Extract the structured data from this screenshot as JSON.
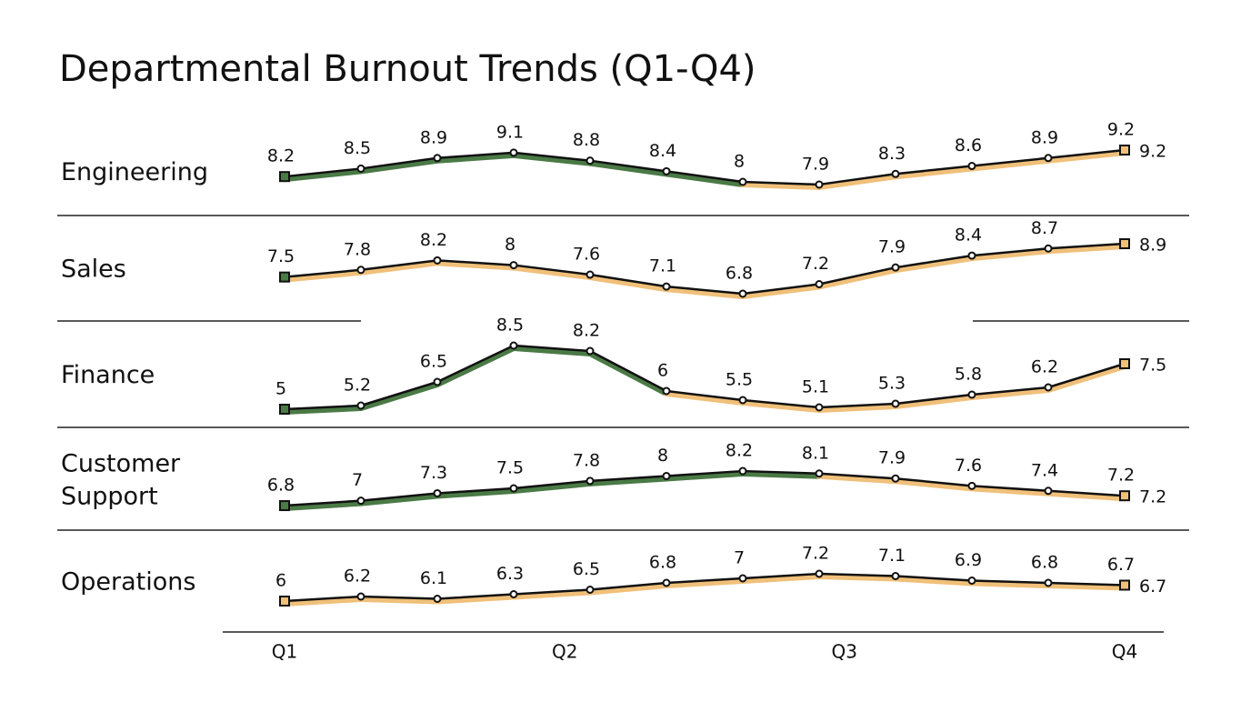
{
  "chart_data": {
    "type": "line",
    "title": "Departmental Burnout Trends (Q1-Q4)",
    "categories": [
      null,
      null,
      null,
      null,
      null,
      null,
      null,
      null,
      null,
      null,
      null,
      null
    ],
    "xticks": [
      {
        "value": 0,
        "label": "Q1"
      },
      {
        "value": 3.67,
        "label": "Q2"
      },
      {
        "value": 7.33,
        "label": "Q3"
      },
      {
        "value": 11,
        "label": "Q4"
      }
    ],
    "line_color": "#111111",
    "series": [
      {
        "name": "Engineering",
        "values": [
          8.2,
          8.5,
          8.9,
          9.1,
          8.8,
          8.4,
          8.0,
          7.9,
          8.3,
          8.6,
          8.9,
          9.2
        ],
        "ylim": [
          7.35,
          9.2
        ],
        "repeat_last_label": true,
        "segment_colors": [
          "#4a7a45",
          "#4a7a45",
          "#4a7a45",
          "#4a7a45",
          "#4a7a45",
          "#4a7a45",
          "#f0c07a",
          "#f0c07a",
          "#f0c07a",
          "#f0c07a",
          "#f0c07a"
        ],
        "marker_colors": [
          "#4a7a45",
          "#f0c07a"
        ]
      },
      {
        "name": "Sales",
        "values": [
          7.5,
          7.8,
          8.2,
          8.0,
          7.6,
          7.1,
          6.8,
          7.2,
          7.9,
          8.4,
          8.7,
          8.9
        ],
        "ylim": [
          6.34,
          9.13
        ],
        "repeat_last_label": false,
        "segment_colors": [
          "#f0c07a",
          "#f0c07a",
          "#f0c07a",
          "#f0c07a",
          "#f0c07a",
          "#f0c07a",
          "#f0c07a",
          "#f0c07a",
          "#f0c07a",
          "#f0c07a",
          "#f0c07a"
        ],
        "marker_colors": [
          "#4a7a45",
          "#f0c07a"
        ]
      },
      {
        "name": "Finance",
        "values": [
          5.0,
          5.2,
          6.5,
          8.5,
          8.2,
          6.0,
          5.5,
          5.1,
          5.3,
          5.8,
          6.2,
          7.5
        ],
        "ylim": [
          4.9,
          8.6
        ],
        "repeat_last_label": false,
        "segment_colors": [
          "#4a7a45",
          "#4a7a45",
          "#4a7a45",
          "#4a7a45",
          "#4a7a45",
          "#f0c07a",
          "#f0c07a",
          "#f0c07a",
          "#f0c07a",
          "#f0c07a",
          "#f0c07a"
        ],
        "marker_colors": [
          "#4a7a45",
          "#f0c07a"
        ]
      },
      {
        "name": "Customer Support",
        "values": [
          6.8,
          7.0,
          7.3,
          7.5,
          7.8,
          8.0,
          8.2,
          8.1,
          7.9,
          7.6,
          7.4,
          7.2
        ],
        "ylim": [
          6.47,
          9.05
        ],
        "repeat_last_label": true,
        "segment_colors": [
          "#4a7a45",
          "#4a7a45",
          "#4a7a45",
          "#4a7a45",
          "#4a7a45",
          "#4a7a45",
          "#4a7a45",
          "#f0c07a",
          "#f0c07a",
          "#f0c07a",
          "#f0c07a"
        ],
        "marker_colors": [
          "#4a7a45",
          "#f0c07a"
        ]
      },
      {
        "name": "Operations",
        "values": [
          6.0,
          6.2,
          6.1,
          6.3,
          6.5,
          6.8,
          7.0,
          7.2,
          7.1,
          6.9,
          6.8,
          6.7
        ],
        "ylim": [
          5.36,
          8.12
        ],
        "repeat_last_label": true,
        "segment_colors": [
          "#f0c07a",
          "#f0c07a",
          "#f0c07a",
          "#f0c07a",
          "#f0c07a",
          "#f0c07a",
          "#f0c07a",
          "#f0c07a",
          "#f0c07a",
          "#f0c07a",
          "#f0c07a"
        ],
        "marker_colors": [
          "#f0c07a",
          "#f0c07a"
        ]
      }
    ]
  }
}
